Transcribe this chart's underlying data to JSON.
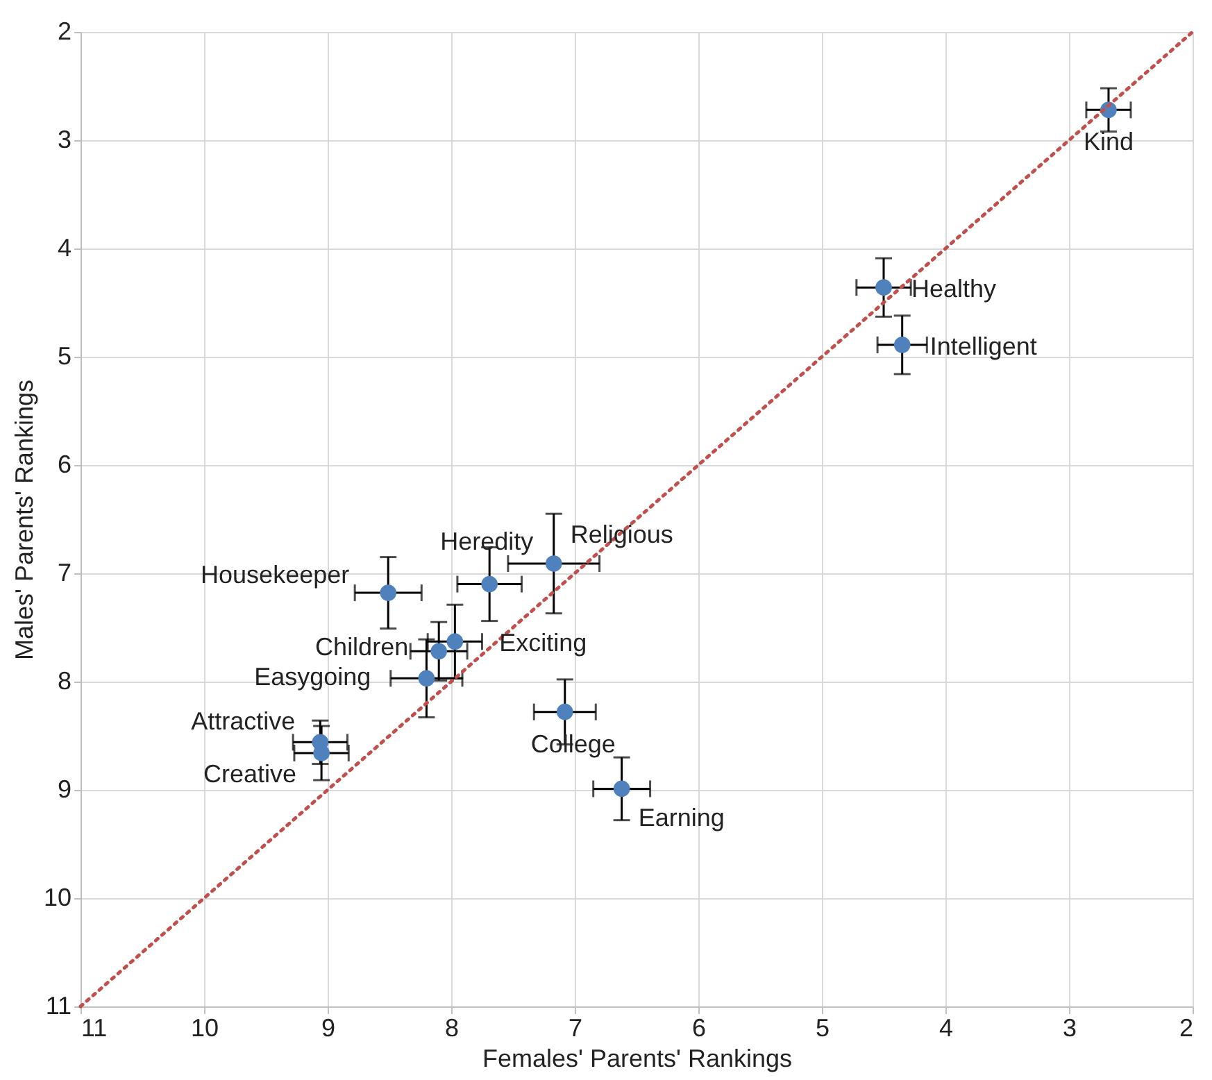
{
  "chart_data": {
    "type": "scatter",
    "xlabel": "Females' Parents' Rankings",
    "ylabel": "Males' Parents' Rankings",
    "xlim": [
      11,
      2
    ],
    "ylim": [
      11,
      2
    ],
    "xticks": [
      11,
      10,
      9,
      8,
      7,
      6,
      5,
      4,
      3,
      2
    ],
    "yticks": [
      11,
      10,
      9,
      8,
      7,
      6,
      5,
      4,
      3,
      2
    ],
    "grid": true,
    "series": [
      {
        "color": "#4f81bd",
        "marker": "circle",
        "x": [
          2.68,
          4.5,
          4.35,
          8.51,
          7.69,
          7.17,
          7.97,
          8.1,
          8.2,
          9.06,
          9.05,
          7.08,
          6.62
        ],
        "values": [
          2.72,
          4.36,
          4.89,
          7.18,
          7.1,
          6.91,
          7.63,
          7.72,
          7.97,
          8.56,
          8.66,
          8.28,
          8.99
        ],
        "errors": [
          0.2,
          0.27,
          0.27,
          0.33,
          0.34,
          0.46,
          0.34,
          0.27,
          0.36,
          0.2,
          0.25,
          0.3,
          0.29
        ],
        "xerrors": [
          0.18,
          0.22,
          0.2,
          0.27,
          0.26,
          0.37,
          0.22,
          0.23,
          0.29,
          0.22,
          0.22,
          0.25,
          0.23
        ]
      },
      {
        "type": "line",
        "color": "#c0504d",
        "line_style": "dotted",
        "x": [
          11,
          2
        ],
        "values": [
          11,
          2
        ]
      }
    ],
    "annotations": [
      {
        "text": "Kind",
        "x": 2.68,
        "y": 2.72
      },
      {
        "text": "Healthy",
        "x": 4.5,
        "y": 4.36
      },
      {
        "text": "Intelligent",
        "x": 4.35,
        "y": 4.89
      },
      {
        "text": "Housekeeper",
        "x": 8.51,
        "y": 7.18
      },
      {
        "text": "Heredity",
        "x": 7.69,
        "y": 7.1
      },
      {
        "text": "Religious",
        "x": 7.17,
        "y": 6.91
      },
      {
        "text": "Exciting",
        "x": 7.97,
        "y": 7.63
      },
      {
        "text": "Children",
        "x": 8.1,
        "y": 7.72
      },
      {
        "text": "Easygoing",
        "x": 8.2,
        "y": 7.97
      },
      {
        "text": "Attractive",
        "x": 9.06,
        "y": 8.56
      },
      {
        "text": "Creative",
        "x": 9.05,
        "y": 8.66
      },
      {
        "text": "College",
        "x": 7.08,
        "y": 8.28
      },
      {
        "text": "Earning",
        "x": 6.62,
        "y": 8.99
      }
    ]
  }
}
